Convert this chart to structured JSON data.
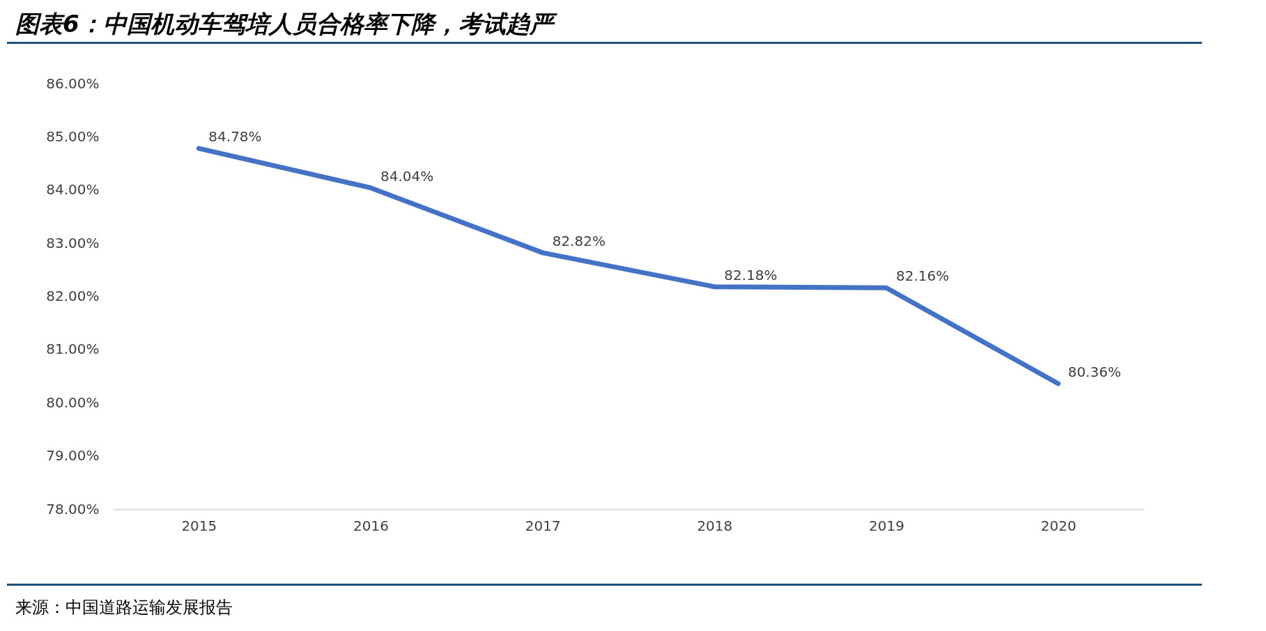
{
  "chart_data": {
    "type": "line",
    "title": "图表6：中国机动车驾培人员合格率下降，考试趋严",
    "categories": [
      "2015",
      "2016",
      "2017",
      "2018",
      "2019",
      "2020"
    ],
    "series": [
      {
        "color": "#4472c4",
        "values": [
          84.78,
          84.04,
          82.82,
          82.18,
          82.16,
          80.36
        ],
        "value_labels": [
          "84.78%",
          "84.04%",
          "82.82%",
          "82.18%",
          "82.16%",
          "80.36%"
        ]
      }
    ],
    "ylim": [
      78,
      86
    ],
    "yticks": [
      {
        "value": 78,
        "label": "78.00%"
      },
      {
        "value": 79,
        "label": "79.00%"
      },
      {
        "value": 80,
        "label": "80.00%"
      },
      {
        "value": 81,
        "label": "81.00%"
      },
      {
        "value": 82,
        "label": "82.00%"
      },
      {
        "value": 83,
        "label": "83.00%"
      },
      {
        "value": 84,
        "label": "84.00%"
      },
      {
        "value": 85,
        "label": "85.00%"
      },
      {
        "value": 86,
        "label": "86.00%"
      }
    ],
    "grid": false,
    "marker": "none",
    "line_style": "solid",
    "annotations": [
      "来源：中国道路运输发展报告"
    ]
  }
}
